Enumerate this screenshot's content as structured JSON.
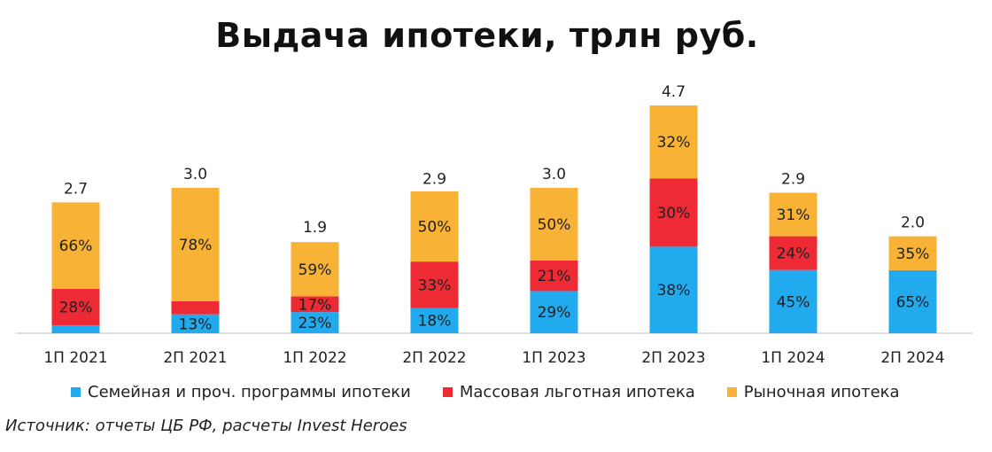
{
  "chart_data": {
    "type": "bar",
    "stacked": true,
    "title": "Выдача ипотеки, трлн руб.",
    "categories": [
      "1П 2021",
      "2П 2021",
      "1П 2022",
      "2П 2022",
      "1П 2023",
      "2П 2023",
      "1П 2024",
      "2П 2024"
    ],
    "totals": [
      2.7,
      3.0,
      1.9,
      2.9,
      3.0,
      4.7,
      2.9,
      2.0
    ],
    "total_labels": [
      "2.7",
      "3.0",
      "1.9",
      "2.9",
      "3.0",
      "4.7",
      "2.9",
      "2.0"
    ],
    "series": [
      {
        "name": "Семейная и проч. программы ипотеки",
        "color": "#22AAEE",
        "shares": [
          6,
          13,
          23,
          18,
          29,
          38,
          45,
          65
        ],
        "labels": [
          "",
          "13%",
          "23%",
          "18%",
          "29%",
          "38%",
          "45%",
          "65%"
        ]
      },
      {
        "name": "Массовая льготная ипотека",
        "color": "#EE2B35",
        "shares": [
          28,
          9,
          17,
          33,
          21,
          30,
          24,
          0
        ],
        "labels": [
          "28%",
          "",
          "17%",
          "33%",
          "21%",
          "30%",
          "24%",
          ""
        ]
      },
      {
        "name": "Рыночная ипотека",
        "color": "#F8B236",
        "shares": [
          66,
          78,
          59,
          50,
          50,
          32,
          31,
          35
        ],
        "labels": [
          "66%",
          "78%",
          "59%",
          "50%",
          "50%",
          "32%",
          "31%",
          "35%"
        ]
      }
    ],
    "ylim": [
      0,
      5
    ],
    "grid": false,
    "legend": "bottom"
  },
  "source": "Источник: отчеты ЦБ РФ, расчеты Invest Heroes"
}
